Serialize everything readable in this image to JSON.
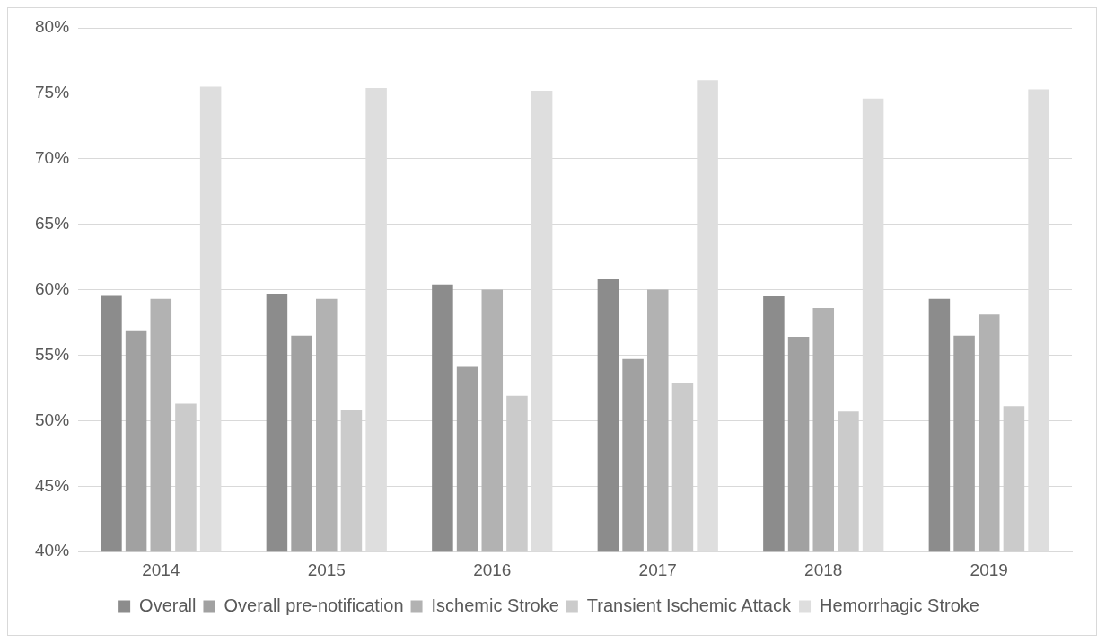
{
  "chart_data": {
    "type": "bar",
    "categories": [
      "2014",
      "2015",
      "2016",
      "2017",
      "2018",
      "2019"
    ],
    "series": [
      {
        "name": "Overall",
        "color": "#8c8c8c",
        "values": [
          59.6,
          59.7,
          60.4,
          60.8,
          59.5,
          59.3
        ]
      },
      {
        "name": "Overall pre-notification",
        "color": "#a1a1a1",
        "values": [
          56.9,
          56.5,
          54.1,
          54.7,
          56.4,
          56.5
        ]
      },
      {
        "name": "Ischemic Stroke",
        "color": "#b2b2b2",
        "values": [
          59.3,
          59.3,
          60.0,
          60.0,
          58.6,
          58.1
        ]
      },
      {
        "name": "Transient Ischemic Attack",
        "color": "#cbcbcb",
        "values": [
          51.3,
          50.8,
          51.9,
          52.9,
          50.7,
          51.1
        ]
      },
      {
        "name": "Hemorrhagic Stroke",
        "color": "#dedede",
        "values": [
          75.5,
          75.4,
          75.2,
          76.0,
          74.6,
          75.3
        ]
      }
    ],
    "ylim": [
      40,
      80
    ],
    "yticks": [
      {
        "value": 40,
        "label": "40%"
      },
      {
        "value": 45,
        "label": "45%"
      },
      {
        "value": 50,
        "label": "50%"
      },
      {
        "value": 55,
        "label": "55%"
      },
      {
        "value": 60,
        "label": "60%"
      },
      {
        "value": 65,
        "label": "65%"
      },
      {
        "value": 70,
        "label": "70%"
      },
      {
        "value": 75,
        "label": "75%"
      },
      {
        "value": 80,
        "label": "80%"
      }
    ],
    "grid": "y",
    "legend": "bottom"
  }
}
